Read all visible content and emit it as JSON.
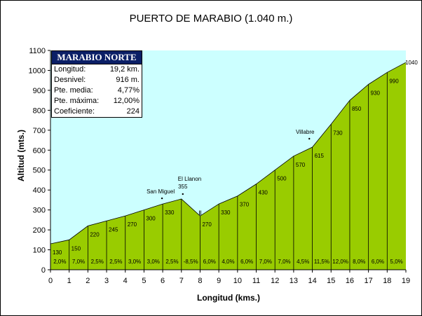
{
  "chart_data": {
    "type": "area",
    "title": "PUERTO DE MARABIO (1.040 m.)",
    "xlabel": "Longitud (kms.)",
    "ylabel": "Altitud (mts.)",
    "xlim": [
      0,
      19
    ],
    "ylim": [
      0,
      1100
    ],
    "x_ticks": [
      0,
      1,
      2,
      3,
      4,
      5,
      6,
      7,
      8,
      9,
      10,
      11,
      12,
      13,
      14,
      15,
      16,
      17,
      18,
      19
    ],
    "y_ticks": [
      0,
      100,
      200,
      300,
      400,
      500,
      600,
      700,
      800,
      900,
      1000,
      1100
    ],
    "profile": [
      {
        "x": 0,
        "y": 130
      },
      {
        "x": 1,
        "y": 150
      },
      {
        "x": 2,
        "y": 220
      },
      {
        "x": 3,
        "y": 245
      },
      {
        "x": 4,
        "y": 270
      },
      {
        "x": 5,
        "y": 300
      },
      {
        "x": 6,
        "y": 330
      },
      {
        "x": 7,
        "y": 355
      },
      {
        "x": 8,
        "y": 270
      },
      {
        "x": 9,
        "y": 330
      },
      {
        "x": 10,
        "y": 370
      },
      {
        "x": 11,
        "y": 430
      },
      {
        "x": 12,
        "y": 500
      },
      {
        "x": 13,
        "y": 570
      },
      {
        "x": 14,
        "y": 615
      },
      {
        "x": 15,
        "y": 730
      },
      {
        "x": 16,
        "y": 850
      },
      {
        "x": 17,
        "y": 930
      },
      {
        "x": 18,
        "y": 990
      },
      {
        "x": 19,
        "y": 1040
      }
    ],
    "point_labels": [
      "130",
      "150",
      "220",
      "245",
      "270",
      "300",
      "330",
      "355",
      "270",
      "330",
      "370",
      "430",
      "500",
      "570",
      "615",
      "730",
      "850",
      "930",
      "990",
      "1040"
    ],
    "gradients": [
      "2,0%",
      "7,0%",
      "2,5%",
      "2,5%",
      "3,0%",
      "3,0%",
      "2,5%",
      "-8,5%",
      "6,0%",
      "4,0%",
      "6,0%",
      "7,0%",
      "7,0%",
      "4,5%",
      "11,5%",
      "12,0%",
      "8,0%",
      "6,0%",
      "5,0%"
    ],
    "places": [
      {
        "name": "San Miguel",
        "x": 6,
        "y": 330
      },
      {
        "name": "El Llanon",
        "x": 7,
        "y": 355
      },
      {
        "name": "Villabre",
        "x": 13.8,
        "y": 615
      }
    ],
    "bridge_marker": {
      "label": "Ⅱ",
      "x": 8,
      "y": 270
    },
    "colors": {
      "sky": "#ccffff",
      "terrain": "#99cc00",
      "box_header": "#0b1f66"
    }
  },
  "info_box": {
    "title": "MARABIO NORTE",
    "rows": [
      {
        "label": "Longitud:",
        "value": "19,2 km."
      },
      {
        "label": "Desnivel:",
        "value": "916  m."
      },
      {
        "label": "Pte. media:",
        "value": "4,77%"
      },
      {
        "label": "Pte. máxima:",
        "value": "12,00%"
      },
      {
        "label": "Coeficiente:",
        "value": "224"
      }
    ]
  }
}
